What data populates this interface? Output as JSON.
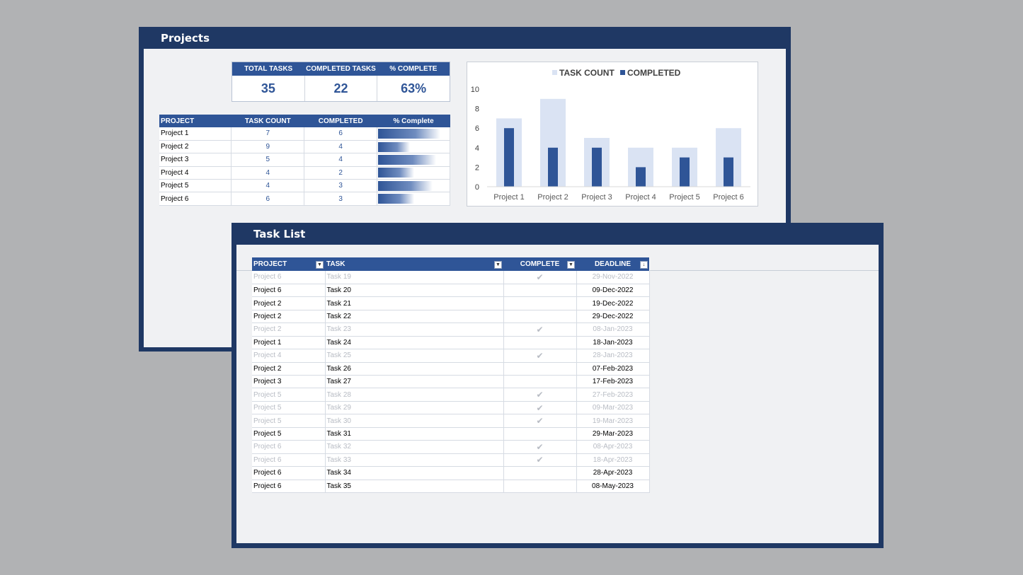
{
  "projects_panel": {
    "title": "Projects",
    "summary": {
      "headers": [
        "TOTAL TASKS",
        "COMPLETED TASKS",
        "% COMPLETE"
      ],
      "values": [
        "35",
        "22",
        "63%"
      ]
    },
    "table": {
      "headers": [
        "PROJECT",
        "TASK COUNT",
        "COMPLETED",
        "% Complete"
      ],
      "rows": [
        {
          "project": "Project 1",
          "task_count": "7",
          "completed": "6",
          "pct": 0.86
        },
        {
          "project": "Project 2",
          "task_count": "9",
          "completed": "4",
          "pct": 0.44
        },
        {
          "project": "Project 3",
          "task_count": "5",
          "completed": "4",
          "pct": 0.8
        },
        {
          "project": "Project 4",
          "task_count": "4",
          "completed": "2",
          "pct": 0.5
        },
        {
          "project": "Project 5",
          "task_count": "4",
          "completed": "3",
          "pct": 0.75
        },
        {
          "project": "Project 6",
          "task_count": "6",
          "completed": "3",
          "pct": 0.5
        }
      ]
    }
  },
  "chart_data": {
    "type": "bar",
    "categories": [
      "Project 1",
      "Project 2",
      "Project 3",
      "Project 4",
      "Project 5",
      "Project 6"
    ],
    "series": [
      {
        "name": "TASK COUNT",
        "values": [
          7,
          9,
          5,
          4,
          4,
          6
        ],
        "color": "#dae3f3"
      },
      {
        "name": "COMPLETED",
        "values": [
          6,
          4,
          4,
          2,
          3,
          3
        ],
        "color": "#2f5597"
      }
    ],
    "yticks": [
      "0",
      "2",
      "4",
      "6",
      "8",
      "10"
    ],
    "ylim": [
      0,
      10
    ],
    "legend": "top",
    "grid": false
  },
  "task_panel": {
    "title": "Task List",
    "headers": [
      "PROJECT",
      "TASK",
      "COMPLETE",
      "DEADLINE"
    ],
    "check_glyph": "✔",
    "rows": [
      {
        "project": "Project 6",
        "task": "Task 19",
        "done": true,
        "deadline": "29-Nov-2022"
      },
      {
        "project": "Project 6",
        "task": "Task 20",
        "done": false,
        "deadline": "09-Dec-2022"
      },
      {
        "project": "Project 2",
        "task": "Task 21",
        "done": false,
        "deadline": "19-Dec-2022"
      },
      {
        "project": "Project 2",
        "task": "Task 22",
        "done": false,
        "deadline": "29-Dec-2022"
      },
      {
        "project": "Project 2",
        "task": "Task 23",
        "done": true,
        "deadline": "08-Jan-2023"
      },
      {
        "project": "Project 1",
        "task": "Task 24",
        "done": false,
        "deadline": "18-Jan-2023"
      },
      {
        "project": "Project 4",
        "task": "Task 25",
        "done": true,
        "deadline": "28-Jan-2023"
      },
      {
        "project": "Project 2",
        "task": "Task 26",
        "done": false,
        "deadline": "07-Feb-2023"
      },
      {
        "project": "Project 3",
        "task": "Task 27",
        "done": false,
        "deadline": "17-Feb-2023"
      },
      {
        "project": "Project 5",
        "task": "Task 28",
        "done": true,
        "deadline": "27-Feb-2023"
      },
      {
        "project": "Project 5",
        "task": "Task 29",
        "done": true,
        "deadline": "09-Mar-2023"
      },
      {
        "project": "Project 5",
        "task": "Task 30",
        "done": true,
        "deadline": "19-Mar-2023"
      },
      {
        "project": "Project 5",
        "task": "Task 31",
        "done": false,
        "deadline": "29-Mar-2023"
      },
      {
        "project": "Project 6",
        "task": "Task 32",
        "done": true,
        "deadline": "08-Apr-2023"
      },
      {
        "project": "Project 6",
        "task": "Task 33",
        "done": true,
        "deadline": "18-Apr-2023"
      },
      {
        "project": "Project 6",
        "task": "Task 34",
        "done": false,
        "deadline": "28-Apr-2023"
      },
      {
        "project": "Project 6",
        "task": "Task 35",
        "done": false,
        "deadline": "08-May-2023"
      }
    ]
  }
}
